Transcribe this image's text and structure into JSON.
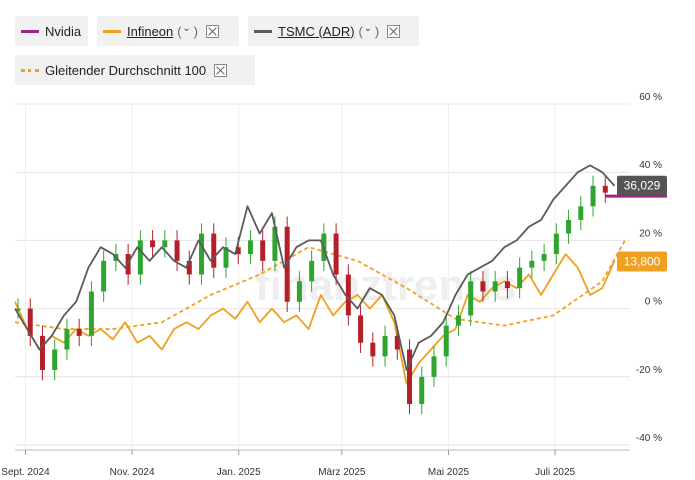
{
  "legend": {
    "items": [
      {
        "label": "Nvidia",
        "color": "#a0237f",
        "style": "solid"
      },
      {
        "label": "Infineon",
        "color": "#f0a020",
        "style": "solid",
        "paren_left": "(",
        "paren_right": ")"
      },
      {
        "label": "TSMC (ADR)",
        "color": "#5a5a5a",
        "style": "solid",
        "paren_left": "(",
        "paren_right": ")"
      },
      {
        "label": "Gleitender Durchschnitt 100",
        "color": "#f0a020",
        "style": "dotted"
      }
    ],
    "chevron": "⌄"
  },
  "icons": {
    "close": "close-icon",
    "chevron": "chevron-down-icon"
  },
  "watermark": "finanztrends",
  "chart_data": {
    "type": "line",
    "xlabel": "",
    "ylabel": "",
    "ylim": [
      -40,
      60
    ],
    "yticks": [
      60,
      40,
      20,
      0,
      -20,
      -40
    ],
    "ytick_labels": [
      "60 %",
      "40 %",
      "20 %",
      "0 %",
      "-20 %",
      "-40 %"
    ],
    "x_start": "2024-08-26",
    "xlim": [
      "2024-08-26",
      "2025-08-10"
    ],
    "xticks": [
      {
        "date": "2024-09-01",
        "label": "Sept. 2024"
      },
      {
        "date": "2024-11-01",
        "label": "Nov. 2024"
      },
      {
        "date": "2025-01-01",
        "label": "Jan. 2025"
      },
      {
        "date": "2025-03-01",
        "label": "März 2025"
      },
      {
        "date": "2025-05-01",
        "label": "Mai 2025"
      },
      {
        "date": "2025-07-01",
        "label": "Juli 2025"
      }
    ],
    "grid": true,
    "last_values": [
      {
        "series": "TSMC (ADR)",
        "value": 36.029,
        "label": "36,029",
        "color": "#555555"
      },
      {
        "series": "Infineon",
        "value": 13.8,
        "label": "13,800",
        "color": "#f0a020"
      }
    ],
    "series": [
      {
        "name": "Nvidia",
        "type": "candlestick",
        "color": "#a0237f",
        "up_color": "#2fa52f",
        "down_color": "#b3202a",
        "x": [
          "2024-08-26",
          "2024-09-02",
          "2024-09-09",
          "2024-09-16",
          "2024-09-23",
          "2024-09-30",
          "2024-10-07",
          "2024-10-14",
          "2024-10-21",
          "2024-10-28",
          "2024-11-04",
          "2024-11-11",
          "2024-11-18",
          "2024-11-25",
          "2024-12-02",
          "2024-12-09",
          "2024-12-16",
          "2024-12-23",
          "2024-12-30",
          "2025-01-06",
          "2025-01-13",
          "2025-01-20",
          "2025-01-27",
          "2025-02-03",
          "2025-02-10",
          "2025-02-17",
          "2025-02-24",
          "2025-03-03",
          "2025-03-10",
          "2025-03-17",
          "2025-03-24",
          "2025-03-31",
          "2025-04-07",
          "2025-04-14",
          "2025-04-21",
          "2025-04-28",
          "2025-05-05",
          "2025-05-12",
          "2025-05-19",
          "2025-05-26",
          "2025-06-02",
          "2025-06-09",
          "2025-06-16",
          "2025-06-23",
          "2025-06-30",
          "2025-07-07",
          "2025-07-14",
          "2025-07-21",
          "2025-07-28"
        ],
        "values": [
          0,
          -8,
          -18,
          -12,
          -6,
          -8,
          5,
          14,
          16,
          10,
          20,
          18,
          20,
          14,
          10,
          22,
          12,
          18,
          16,
          20,
          14,
          24,
          2,
          8,
          14,
          22,
          10,
          -2,
          -10,
          -14,
          -8,
          -12,
          -28,
          -20,
          -14,
          -5,
          -2,
          8,
          5,
          8,
          6,
          12,
          14,
          16,
          22,
          26,
          30,
          36,
          34
        ],
        "close_value": 33
      },
      {
        "name": "Infineon",
        "color": "#f0a020",
        "x": [
          "2024-08-26",
          "2024-09-02",
          "2024-09-09",
          "2024-09-16",
          "2024-09-23",
          "2024-09-30",
          "2024-10-07",
          "2024-10-14",
          "2024-10-21",
          "2024-10-28",
          "2024-11-04",
          "2024-11-11",
          "2024-11-18",
          "2024-11-25",
          "2024-12-02",
          "2024-12-09",
          "2024-12-16",
          "2024-12-23",
          "2024-12-30",
          "2025-01-06",
          "2025-01-13",
          "2025-01-20",
          "2025-01-27",
          "2025-02-03",
          "2025-02-10",
          "2025-02-17",
          "2025-02-24",
          "2025-03-03",
          "2025-03-10",
          "2025-03-17",
          "2025-03-24",
          "2025-03-31",
          "2025-04-07",
          "2025-04-14",
          "2025-04-21",
          "2025-04-28",
          "2025-05-05",
          "2025-05-12",
          "2025-05-19",
          "2025-05-26",
          "2025-06-02",
          "2025-06-09",
          "2025-06-16",
          "2025-06-23",
          "2025-06-30",
          "2025-07-07",
          "2025-07-14",
          "2025-07-21",
          "2025-07-28",
          "2025-08-04"
        ],
        "values": [
          2,
          -6,
          -12,
          -8,
          -10,
          -6,
          -8,
          -6,
          -9,
          -4,
          -10,
          -8,
          -12,
          -6,
          -4,
          -6,
          -2,
          0,
          -3,
          2,
          -4,
          0,
          -4,
          -2,
          -6,
          4,
          -2,
          2,
          4,
          0,
          4,
          -4,
          -22,
          -16,
          -12,
          -8,
          -6,
          4,
          2,
          6,
          8,
          6,
          10,
          4,
          10,
          16,
          12,
          4,
          6,
          14
        ]
      },
      {
        "name": "TSMC (ADR)",
        "color": "#5a5a5a",
        "x": [
          "2024-08-26",
          "2024-09-02",
          "2024-09-09",
          "2024-09-16",
          "2024-09-23",
          "2024-09-30",
          "2024-10-07",
          "2024-10-14",
          "2024-10-21",
          "2024-10-28",
          "2024-11-04",
          "2024-11-11",
          "2024-11-18",
          "2024-11-25",
          "2024-12-02",
          "2024-12-09",
          "2024-12-16",
          "2024-12-23",
          "2024-12-30",
          "2025-01-06",
          "2025-01-13",
          "2025-01-20",
          "2025-01-27",
          "2025-02-03",
          "2025-02-10",
          "2025-02-17",
          "2025-02-24",
          "2025-03-03",
          "2025-03-10",
          "2025-03-17",
          "2025-03-24",
          "2025-03-31",
          "2025-04-07",
          "2025-04-14",
          "2025-04-21",
          "2025-04-28",
          "2025-05-05",
          "2025-05-12",
          "2025-05-19",
          "2025-05-26",
          "2025-06-02",
          "2025-06-09",
          "2025-06-16",
          "2025-06-23",
          "2025-06-30",
          "2025-07-07",
          "2025-07-14",
          "2025-07-21",
          "2025-07-28",
          "2025-08-04"
        ],
        "values": [
          0,
          -6,
          -12,
          -8,
          -2,
          2,
          12,
          18,
          16,
          12,
          18,
          14,
          18,
          14,
          12,
          20,
          14,
          18,
          16,
          30,
          22,
          28,
          12,
          18,
          20,
          20,
          10,
          4,
          0,
          6,
          4,
          -2,
          -18,
          -10,
          -8,
          -4,
          4,
          10,
          12,
          14,
          18,
          20,
          24,
          26,
          32,
          36,
          40,
          42,
          40,
          36
        ]
      },
      {
        "name": "Gleitender Durchschnitt 100",
        "color": "#f0a020",
        "style": "dotted",
        "x": [
          "2024-08-26",
          "2024-09-23",
          "2024-10-21",
          "2024-11-18",
          "2024-12-16",
          "2025-01-13",
          "2025-02-10",
          "2025-03-10",
          "2025-04-07",
          "2025-05-05",
          "2025-06-02",
          "2025-06-30",
          "2025-07-28",
          "2025-08-10"
        ],
        "values": [
          -4,
          -6,
          -6,
          -4,
          4,
          10,
          18,
          14,
          6,
          -3,
          -5,
          -2,
          8,
          20
        ]
      }
    ]
  }
}
